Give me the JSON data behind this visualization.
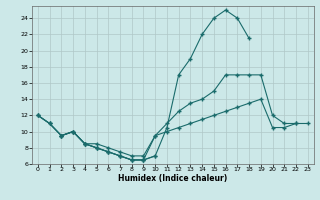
{
  "background_color": "#cce8e8",
  "grid_color": "#b0c8c8",
  "line_color": "#1a6b6b",
  "xlabel": "Humidex (Indice chaleur)",
  "xlim": [
    -0.5,
    23.5
  ],
  "ylim": [
    6,
    25.5
  ],
  "xticks": [
    0,
    1,
    2,
    3,
    4,
    5,
    6,
    7,
    8,
    9,
    10,
    11,
    12,
    13,
    14,
    15,
    16,
    17,
    18,
    19,
    20,
    21,
    22,
    23
  ],
  "yticks": [
    6,
    8,
    10,
    12,
    14,
    16,
    18,
    20,
    22,
    24
  ],
  "line1_x": [
    0,
    1,
    2,
    3,
    4,
    5,
    6,
    7,
    8,
    9,
    10,
    11,
    12,
    13,
    14,
    15,
    16,
    17,
    18
  ],
  "line1_y": [
    12,
    11,
    9.5,
    10,
    8.5,
    8,
    7.5,
    7,
    6.5,
    6.5,
    7,
    10.5,
    17,
    19,
    22,
    24,
    25,
    24,
    21.5
  ],
  "line2_x": [
    0,
    1,
    2,
    3,
    4,
    5,
    6,
    7,
    8,
    9,
    10,
    11,
    12,
    13,
    14,
    15,
    16,
    17,
    18,
    19,
    20,
    21,
    22
  ],
  "line2_y": [
    12,
    11,
    9.5,
    10,
    8.5,
    8,
    7.5,
    7,
    6.5,
    6.5,
    9.5,
    11,
    12.5,
    13.5,
    14,
    15,
    17,
    17,
    17,
    17,
    12,
    11,
    11
  ],
  "line3_x": [
    0,
    1,
    2,
    3,
    4,
    5,
    6,
    7,
    8,
    9,
    10,
    11,
    12,
    13,
    14,
    15,
    16,
    17,
    18,
    19,
    20,
    21,
    22,
    23
  ],
  "line3_y": [
    12,
    11,
    9.5,
    10,
    8.5,
    8.5,
    8,
    7.5,
    7,
    7,
    9.5,
    10,
    10.5,
    11,
    11.5,
    12,
    12.5,
    13,
    13.5,
    14,
    10.5,
    10.5,
    11,
    11
  ],
  "line4_x": [
    2,
    3,
    4,
    5,
    6,
    7,
    8,
    9,
    10
  ],
  "line4_y": [
    9.5,
    10,
    8.5,
    8,
    7.5,
    7,
    6.5,
    6.5,
    7
  ]
}
